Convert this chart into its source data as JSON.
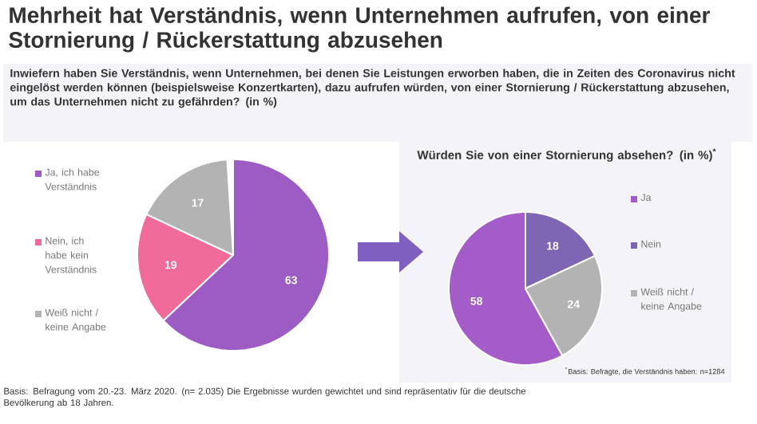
{
  "chart_data": [
    {
      "type": "pie",
      "title": "Mehrheit hat Verständnis, wenn Unternehmen aufrufen, von einer Stornierung / Rückerstattung abzusehen",
      "subtitle": "Inwiefern haben Sie Verständnis, wenn Unternehmen, bei denen Sie Leistungen erworben haben, die in Zeiten des Coronavirus nicht eingelöst werden können (beispielsweise Konzertkarten), dazu aufrufen würden, von einer Stornierung / Rückerstattung abzusehen, um das Unternehmen nicht zu gefährden? (in %)",
      "categories": [
        "Ja, ich habe Verständnis",
        "Nein, ich habe kein Verständnis",
        "Weiß nicht / keine Angabe"
      ],
      "values": [
        63,
        19,
        17
      ],
      "colors": [
        "#9c5cc4",
        "#f06a9a",
        "#b3b3b3"
      ],
      "data_labels": true,
      "legend": "left",
      "annotations": [
        "Basis: Befragung vom 20.-23. März 2020. (n= 2.035) Die Ergebnisse wurden gewichtet und sind repräsentativ für die deutsche Bevölkerung ab 18 Jahren."
      ]
    },
    {
      "type": "pie",
      "title": "Würden Sie von einer Stornierung absehen? (in %)$^{*}$",
      "categories": [
        "Ja",
        "Nein",
        "Weiß nicht / keine Angabe"
      ],
      "values": [
        58,
        18,
        24
      ],
      "colors": [
        "#a45cc8",
        "#7f66b5",
        "#b3b3b3"
      ],
      "data_labels": true,
      "legend": "right",
      "annotations": [
        "$^{*}$Basis: Befragte, die Verständnis haben: n=1284"
      ]
    }
  ]
}
